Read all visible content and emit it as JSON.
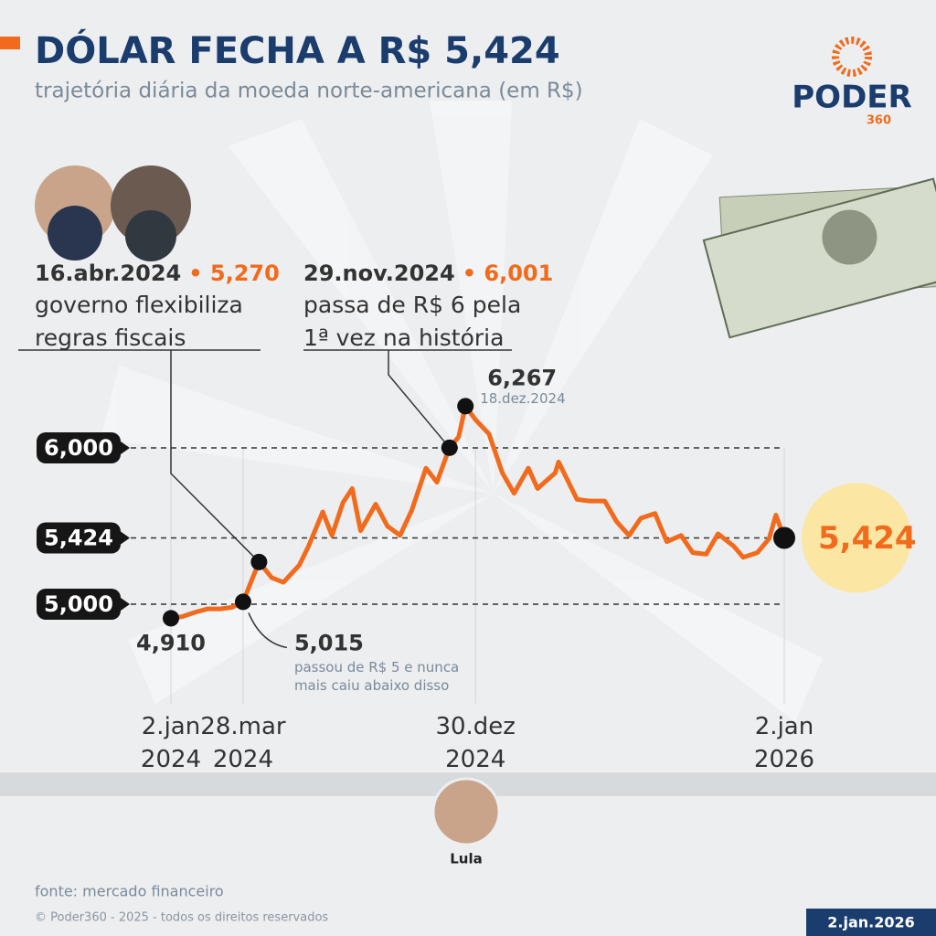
{
  "header": {
    "title": "DÓLAR FECHA A R$ 5,424",
    "subtitle": "trajetória diária da moeda norte-americana (em R$)",
    "brand": "PODER",
    "brand_sub": "360"
  },
  "chart_data": {
    "type": "line",
    "x": [
      "2024-01-02",
      "2024-01-15",
      "2024-02-01",
      "2024-02-15",
      "2024-03-01",
      "2024-03-15",
      "2024-03-28",
      "2024-04-16",
      "2024-05-01",
      "2024-05-15",
      "2024-06-03",
      "2024-06-14",
      "2024-07-01",
      "2024-07-12",
      "2024-07-25",
      "2024-08-05",
      "2024-08-15",
      "2024-09-02",
      "2024-09-16",
      "2024-10-01",
      "2024-10-15",
      "2024-11-01",
      "2024-11-14",
      "2024-11-29",
      "2024-12-10",
      "2024-12-18",
      "2024-12-30",
      "2025-01-15",
      "2025-01-31",
      "2025-02-14",
      "2025-03-03",
      "2025-03-14",
      "2025-04-04",
      "2025-04-08",
      "2025-04-30",
      "2025-05-15",
      "2025-06-02",
      "2025-06-16",
      "2025-07-01",
      "2025-07-15",
      "2025-08-01",
      "2025-08-15",
      "2025-09-01",
      "2025-09-15",
      "2025-10-01",
      "2025-10-15",
      "2025-11-03",
      "2025-11-14",
      "2025-12-01",
      "2025-12-15",
      "2025-12-23",
      "2026-01-02"
    ],
    "series": [
      {
        "name": "dólar",
        "color": "#f26a1b",
        "values": [
          4.91,
          4.92,
          4.95,
          4.97,
          4.97,
          4.98,
          5.015,
          5.27,
          5.17,
          5.14,
          5.25,
          5.37,
          5.59,
          5.44,
          5.65,
          5.74,
          5.47,
          5.64,
          5.5,
          5.44,
          5.6,
          5.87,
          5.78,
          6.001,
          6.07,
          6.267,
          6.18,
          6.09,
          5.84,
          5.71,
          5.87,
          5.74,
          5.84,
          5.91,
          5.67,
          5.66,
          5.66,
          5.53,
          5.44,
          5.55,
          5.58,
          5.4,
          5.44,
          5.33,
          5.32,
          5.45,
          5.37,
          5.3,
          5.33,
          5.42,
          5.57,
          5.424
        ]
      }
    ],
    "xlim": [
      "2024-01-02",
      "2026-01-02"
    ],
    "xticks": [
      {
        "value": "2024-01-02",
        "label": "2.jan 2024"
      },
      {
        "value": "2024-03-28",
        "label": "28.mar 2024"
      },
      {
        "value": "2024-12-30",
        "label": "30.dez 2024"
      },
      {
        "value": "2026-01-02",
        "label": "2.jan 2026"
      }
    ],
    "ylim": [
      4.7,
      6.4
    ],
    "yticks": [
      {
        "value": 5.0,
        "label": "5,000"
      },
      {
        "value": 5.424,
        "label": "5,424"
      },
      {
        "value": 6.0,
        "label": "6,000"
      }
    ],
    "annotations": [
      {
        "x": "2024-01-02",
        "y": 4.91,
        "value_label": "4,910"
      },
      {
        "x": "2024-03-28",
        "y": 5.015,
        "value_label": "5,015",
        "lines": [
          "passou de R$ 5 e nunca",
          "mais caiu abaixo disso"
        ]
      },
      {
        "x": "2024-04-16",
        "y": 5.27,
        "date_label": "16.abr.2024",
        "value_label": "• 5,270",
        "lines": [
          "governo flexibiliza",
          "regras fiscais"
        ]
      },
      {
        "x": "2024-11-29",
        "y": 6.001,
        "date_label": "29.nov.2024",
        "value_label": "• 6,001",
        "lines": [
          "passa de R$ 6 pela",
          "1ª vez na história"
        ]
      },
      {
        "x": "2024-12-18",
        "y": 6.267,
        "value_label": "6,267",
        "date_label": "18.dez.2024"
      },
      {
        "x": "2026-01-02",
        "y": 5.424,
        "value_label": "5,424"
      }
    ]
  },
  "footer": {
    "photo_label": "Lula",
    "source": "fonte: mercado financeiro",
    "copyright": "© Poder360 - 2025 - todos os direitos reservados",
    "date": "2.jan.2026"
  }
}
